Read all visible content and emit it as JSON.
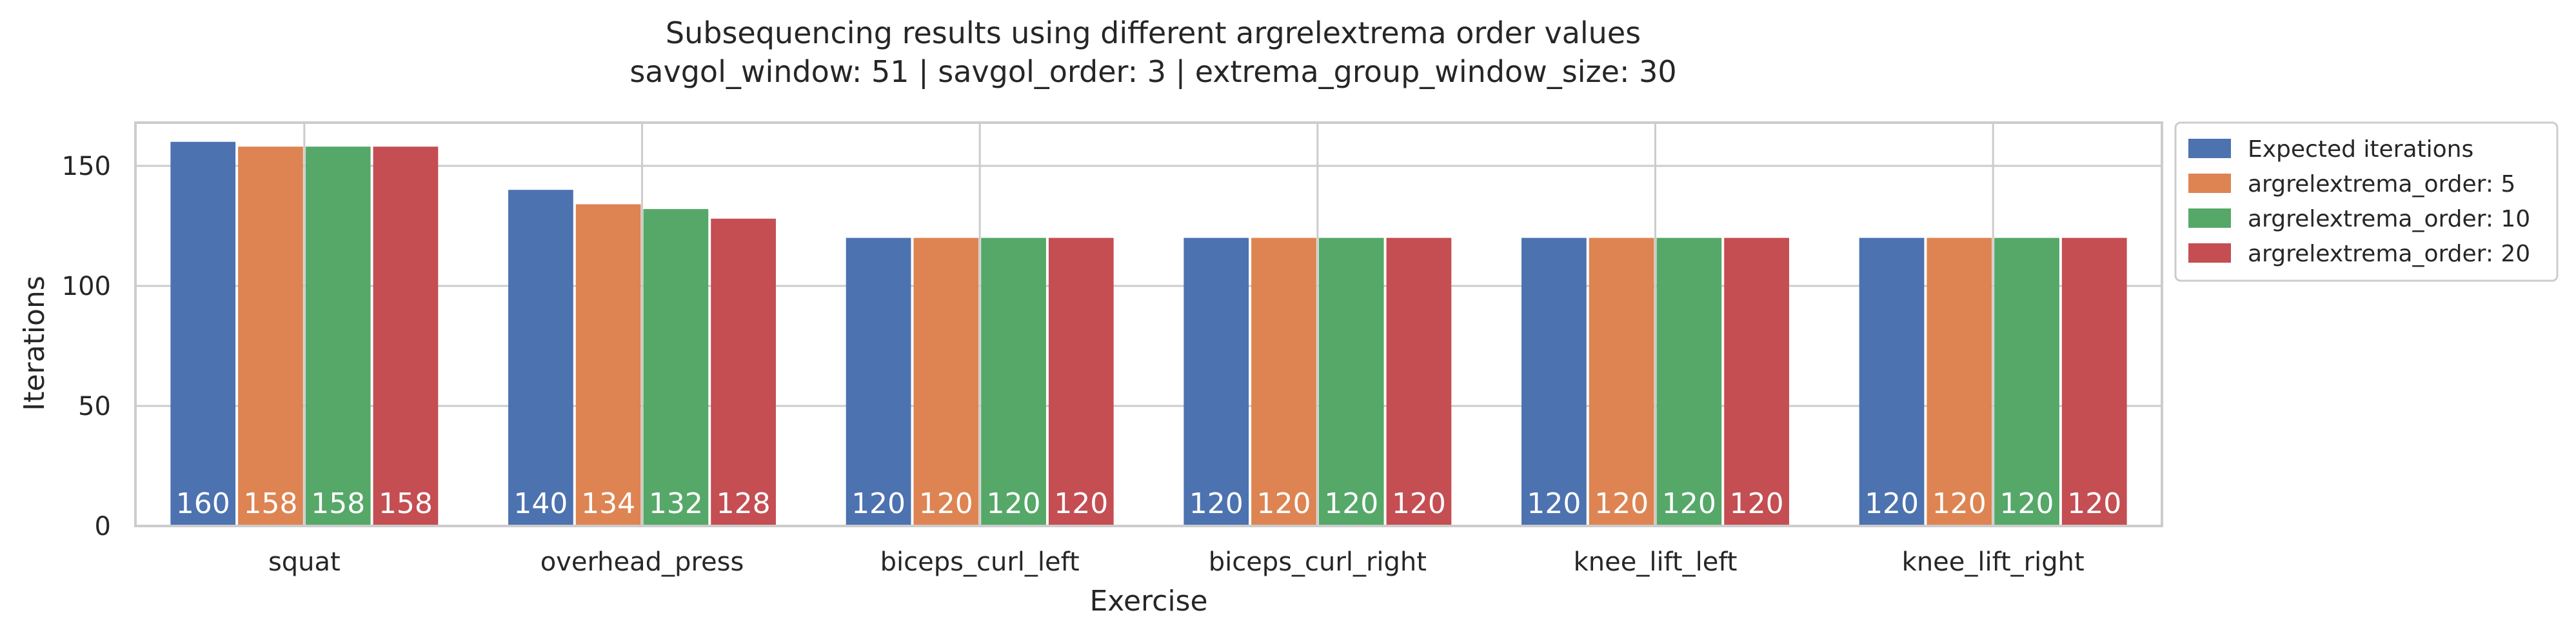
{
  "chart_data": {
    "type": "bar",
    "title": "Subsequencing results using different argrelextrema order values",
    "subtitle": "savgol_window: 51  |  savgol_order: 3  |  extrema_group_window_size: 30",
    "xlabel": "Exercise",
    "ylabel": "Iterations",
    "ylim": [
      0,
      168
    ],
    "yticks": [
      0,
      50,
      100,
      150
    ],
    "grid": true,
    "legend_position": "outside-top-right",
    "categories": [
      "squat",
      "overhead_press",
      "biceps_curl_left",
      "biceps_curl_right",
      "knee_lift_left",
      "knee_lift_right"
    ],
    "series": [
      {
        "name": "Expected iterations",
        "color": "#4c72b0",
        "values": [
          160,
          140,
          120,
          120,
          120,
          120
        ]
      },
      {
        "name": "argrelextrema_order: 5",
        "color": "#dd8452",
        "values": [
          158,
          134,
          120,
          120,
          120,
          120
        ]
      },
      {
        "name": "argrelextrema_order: 10",
        "color": "#55a868",
        "values": [
          158,
          132,
          120,
          120,
          120,
          120
        ]
      },
      {
        "name": "argrelextrema_order: 20",
        "color": "#c44e52",
        "values": [
          158,
          128,
          120,
          120,
          120,
          120
        ]
      }
    ]
  }
}
